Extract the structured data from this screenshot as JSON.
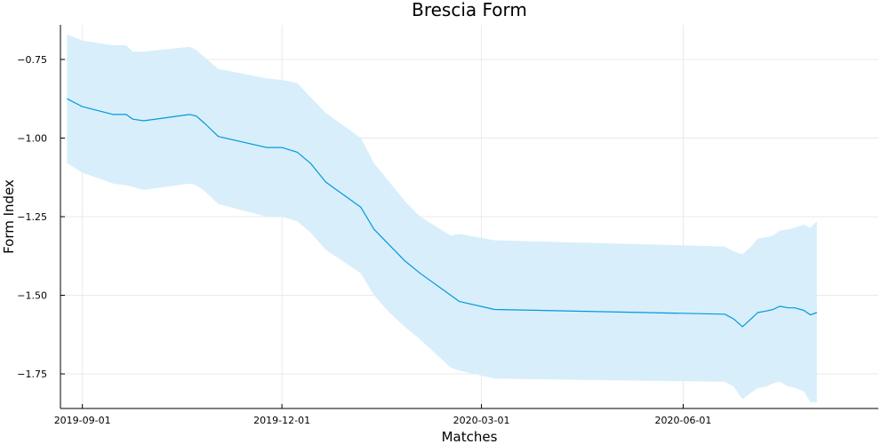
{
  "chart_data": {
    "type": "line",
    "title": "Brescia Form",
    "xlabel": "Matches",
    "ylabel": "Form Index",
    "x_ticks": [
      "2019-09-01",
      "2019-12-01",
      "2020-03-01",
      "2020-06-01"
    ],
    "y_ticks": [
      -0.75,
      -1.0,
      -1.25,
      -1.5,
      -1.75
    ],
    "xlim": [
      "2019-08-22",
      "2020-08-29"
    ],
    "ylim": [
      -1.86,
      -0.64
    ],
    "grid": true,
    "legend": "none",
    "series": [
      {
        "color": "#009AD9",
        "band_color": "#D8EEFB",
        "x": [
          "2019-08-25",
          "2019-09-01",
          "2019-09-15",
          "2019-09-21",
          "2019-09-24",
          "2019-09-29",
          "2019-10-20",
          "2019-10-23",
          "2019-10-27",
          "2019-11-02",
          "2019-11-24",
          "2019-12-01",
          "2019-12-08",
          "2019-12-14",
          "2019-12-21",
          "2020-01-06",
          "2020-01-12",
          "2020-01-19",
          "2020-01-26",
          "2020-02-02",
          "2020-02-16",
          "2020-02-20",
          "2020-03-07",
          "2020-06-20",
          "2020-06-24",
          "2020-06-28",
          "2020-07-02",
          "2020-07-05",
          "2020-07-09",
          "2020-07-12",
          "2020-07-15",
          "2020-07-19",
          "2020-07-22",
          "2020-07-26",
          "2020-07-29",
          "2020-08-01"
        ],
        "y": [
          -0.875,
          -0.9,
          -0.925,
          -0.925,
          -0.94,
          -0.945,
          -0.925,
          -0.93,
          -0.955,
          -0.995,
          -1.03,
          -1.03,
          -1.045,
          -1.08,
          -1.14,
          -1.22,
          -1.29,
          -1.34,
          -1.39,
          -1.43,
          -1.5,
          -1.52,
          -1.545,
          -1.56,
          -1.575,
          -1.6,
          -1.575,
          -1.555,
          -1.55,
          -1.545,
          -1.535,
          -1.54,
          -1.54,
          -1.548,
          -1.562,
          -1.555
        ],
        "upper": [
          -0.67,
          -0.69,
          -0.705,
          -0.705,
          -0.725,
          -0.725,
          -0.71,
          -0.72,
          -0.745,
          -0.78,
          -0.81,
          -0.815,
          -0.825,
          -0.87,
          -0.92,
          -1.0,
          -1.08,
          -1.14,
          -1.2,
          -1.25,
          -1.31,
          -1.305,
          -1.325,
          -1.345,
          -1.36,
          -1.37,
          -1.345,
          -1.32,
          -1.315,
          -1.31,
          -1.295,
          -1.29,
          -1.285,
          -1.275,
          -1.285,
          -1.265
        ],
        "lower": [
          -1.08,
          -1.11,
          -1.145,
          -1.15,
          -1.155,
          -1.165,
          -1.145,
          -1.15,
          -1.17,
          -1.21,
          -1.25,
          -1.25,
          -1.265,
          -1.3,
          -1.355,
          -1.43,
          -1.5,
          -1.555,
          -1.6,
          -1.64,
          -1.73,
          -1.74,
          -1.765,
          -1.775,
          -1.79,
          -1.83,
          -1.81,
          -1.795,
          -1.79,
          -1.78,
          -1.775,
          -1.79,
          -1.795,
          -1.805,
          -1.84,
          -1.84
        ]
      }
    ]
  }
}
